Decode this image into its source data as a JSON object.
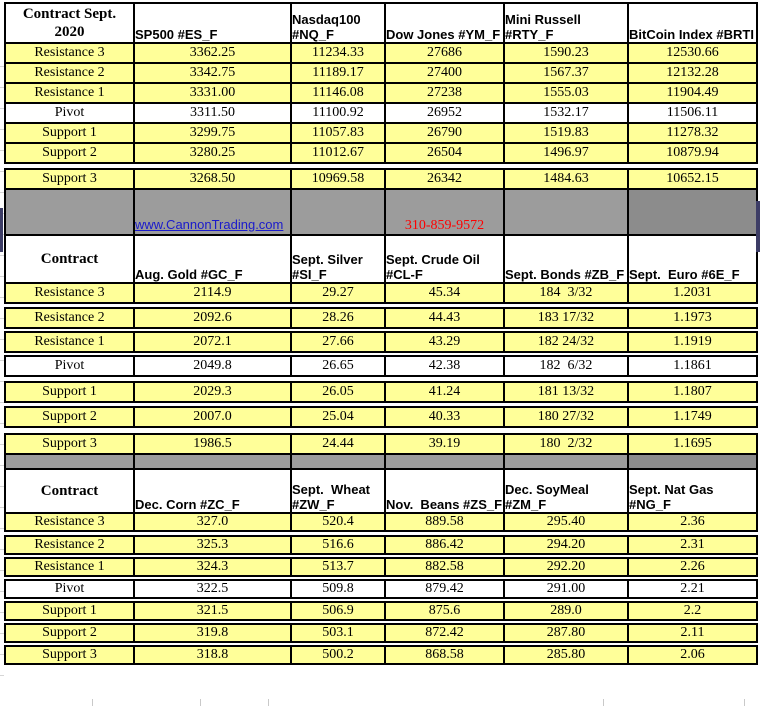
{
  "separator": {
    "link_text": "www.CannonTrading.com",
    "phone": "310-859-9572"
  },
  "colors": {
    "cell_yellow": "#FFFF99",
    "separator_gray": "#9C9C9C",
    "separator_gray_dark": "#8C8C8C",
    "link_blue": "#1A1ACC",
    "phone_red": "#FF0000",
    "border_black": "#000000"
  },
  "tables": [
    {
      "corner": [
        "Contract Sept.",
        "2020"
      ],
      "columns": [
        "SP500 #ES_F",
        "Nasdaq100 #NQ_F",
        "Dow Jones #YM_F",
        "Mini Russell #RTY_F",
        "BitCoin Index #BRTI"
      ],
      "rows": [
        {
          "label": "Resistance 3",
          "values": [
            "3362.25",
            "11234.33",
            "27686",
            "1590.23",
            "12530.66"
          ]
        },
        {
          "label": "Resistance 2",
          "values": [
            "3342.75",
            "11189.17",
            "27400",
            "1567.37",
            "12132.28"
          ]
        },
        {
          "label": "Resistance 1",
          "values": [
            "3331.00",
            "11146.08",
            "27238",
            "1555.03",
            "11904.49"
          ]
        },
        {
          "label": "Pivot",
          "values": [
            "3311.50",
            "11100.92",
            "26952",
            "1532.17",
            "11506.11"
          ]
        },
        {
          "label": "Support 1",
          "values": [
            "3299.75",
            "11057.83",
            "26790",
            "1519.83",
            "11278.32"
          ]
        },
        {
          "label": "Support 2",
          "values": [
            "3280.25",
            "11012.67",
            "26504",
            "1496.97",
            "10879.94"
          ]
        },
        {
          "label": "Support 3",
          "values": [
            "3268.50",
            "10969.58",
            "26342",
            "1484.63",
            "10652.15"
          ]
        }
      ]
    },
    {
      "corner": [
        "Contract"
      ],
      "columns": [
        "Aug. Gold #GC_F",
        "Sept. Silver #SI_F",
        "Sept. Crude Oil #CL-F",
        "Sept. Bonds #ZB_F",
        "Sept.  Euro #6E_F"
      ],
      "rows": [
        {
          "label": "Resistance 3",
          "values": [
            "2114.9",
            "29.27",
            "45.34",
            "184  3/32",
            "1.2031"
          ]
        },
        {
          "label": "Resistance 2",
          "values": [
            "2092.6",
            "28.26",
            "44.43",
            "183 17/32",
            "1.1973"
          ]
        },
        {
          "label": "Resistance 1",
          "values": [
            "2072.1",
            "27.66",
            "43.29",
            "182 24/32",
            "1.1919"
          ]
        },
        {
          "label": "Pivot",
          "values": [
            "2049.8",
            "26.65",
            "42.38",
            "182  6/32",
            "1.1861"
          ]
        },
        {
          "label": "Support 1",
          "values": [
            "2029.3",
            "26.05",
            "41.24",
            "181 13/32",
            "1.1807"
          ]
        },
        {
          "label": "Support 2",
          "values": [
            "2007.0",
            "25.04",
            "40.33",
            "180 27/32",
            "1.1749"
          ]
        },
        {
          "label": "Support 3",
          "values": [
            "1986.5",
            "24.44",
            "39.19",
            "180  2/32",
            "1.1695"
          ]
        }
      ]
    },
    {
      "corner": [
        "Contract"
      ],
      "columns": [
        "Dec. Corn #ZC_F",
        "Sept.  Wheat #ZW_F",
        "Nov.  Beans #ZS_F",
        "Dec. SoyMeal #ZM_F",
        "Sept. Nat Gas #NG_F"
      ],
      "rows": [
        {
          "label": "Resistance 3",
          "values": [
            "327.0",
            "520.4",
            "889.58",
            "295.40",
            "2.36"
          ]
        },
        {
          "label": "Resistance 2",
          "values": [
            "325.3",
            "516.6",
            "886.42",
            "294.20",
            "2.31"
          ]
        },
        {
          "label": "Resistance 1",
          "values": [
            "324.3",
            "513.7",
            "882.58",
            "292.20",
            "2.26"
          ]
        },
        {
          "label": "Pivot",
          "values": [
            "322.5",
            "509.8",
            "879.42",
            "291.00",
            "2.21"
          ]
        },
        {
          "label": "Support 1",
          "values": [
            "321.5",
            "506.9",
            "875.6",
            "289.0",
            "2.2"
          ]
        },
        {
          "label": "Support 2",
          "values": [
            "319.8",
            "503.1",
            "872.42",
            "287.80",
            "2.11"
          ]
        },
        {
          "label": "Support 3",
          "values": [
            "318.8",
            "500.2",
            "868.58",
            "285.80",
            "2.06"
          ]
        }
      ]
    }
  ]
}
